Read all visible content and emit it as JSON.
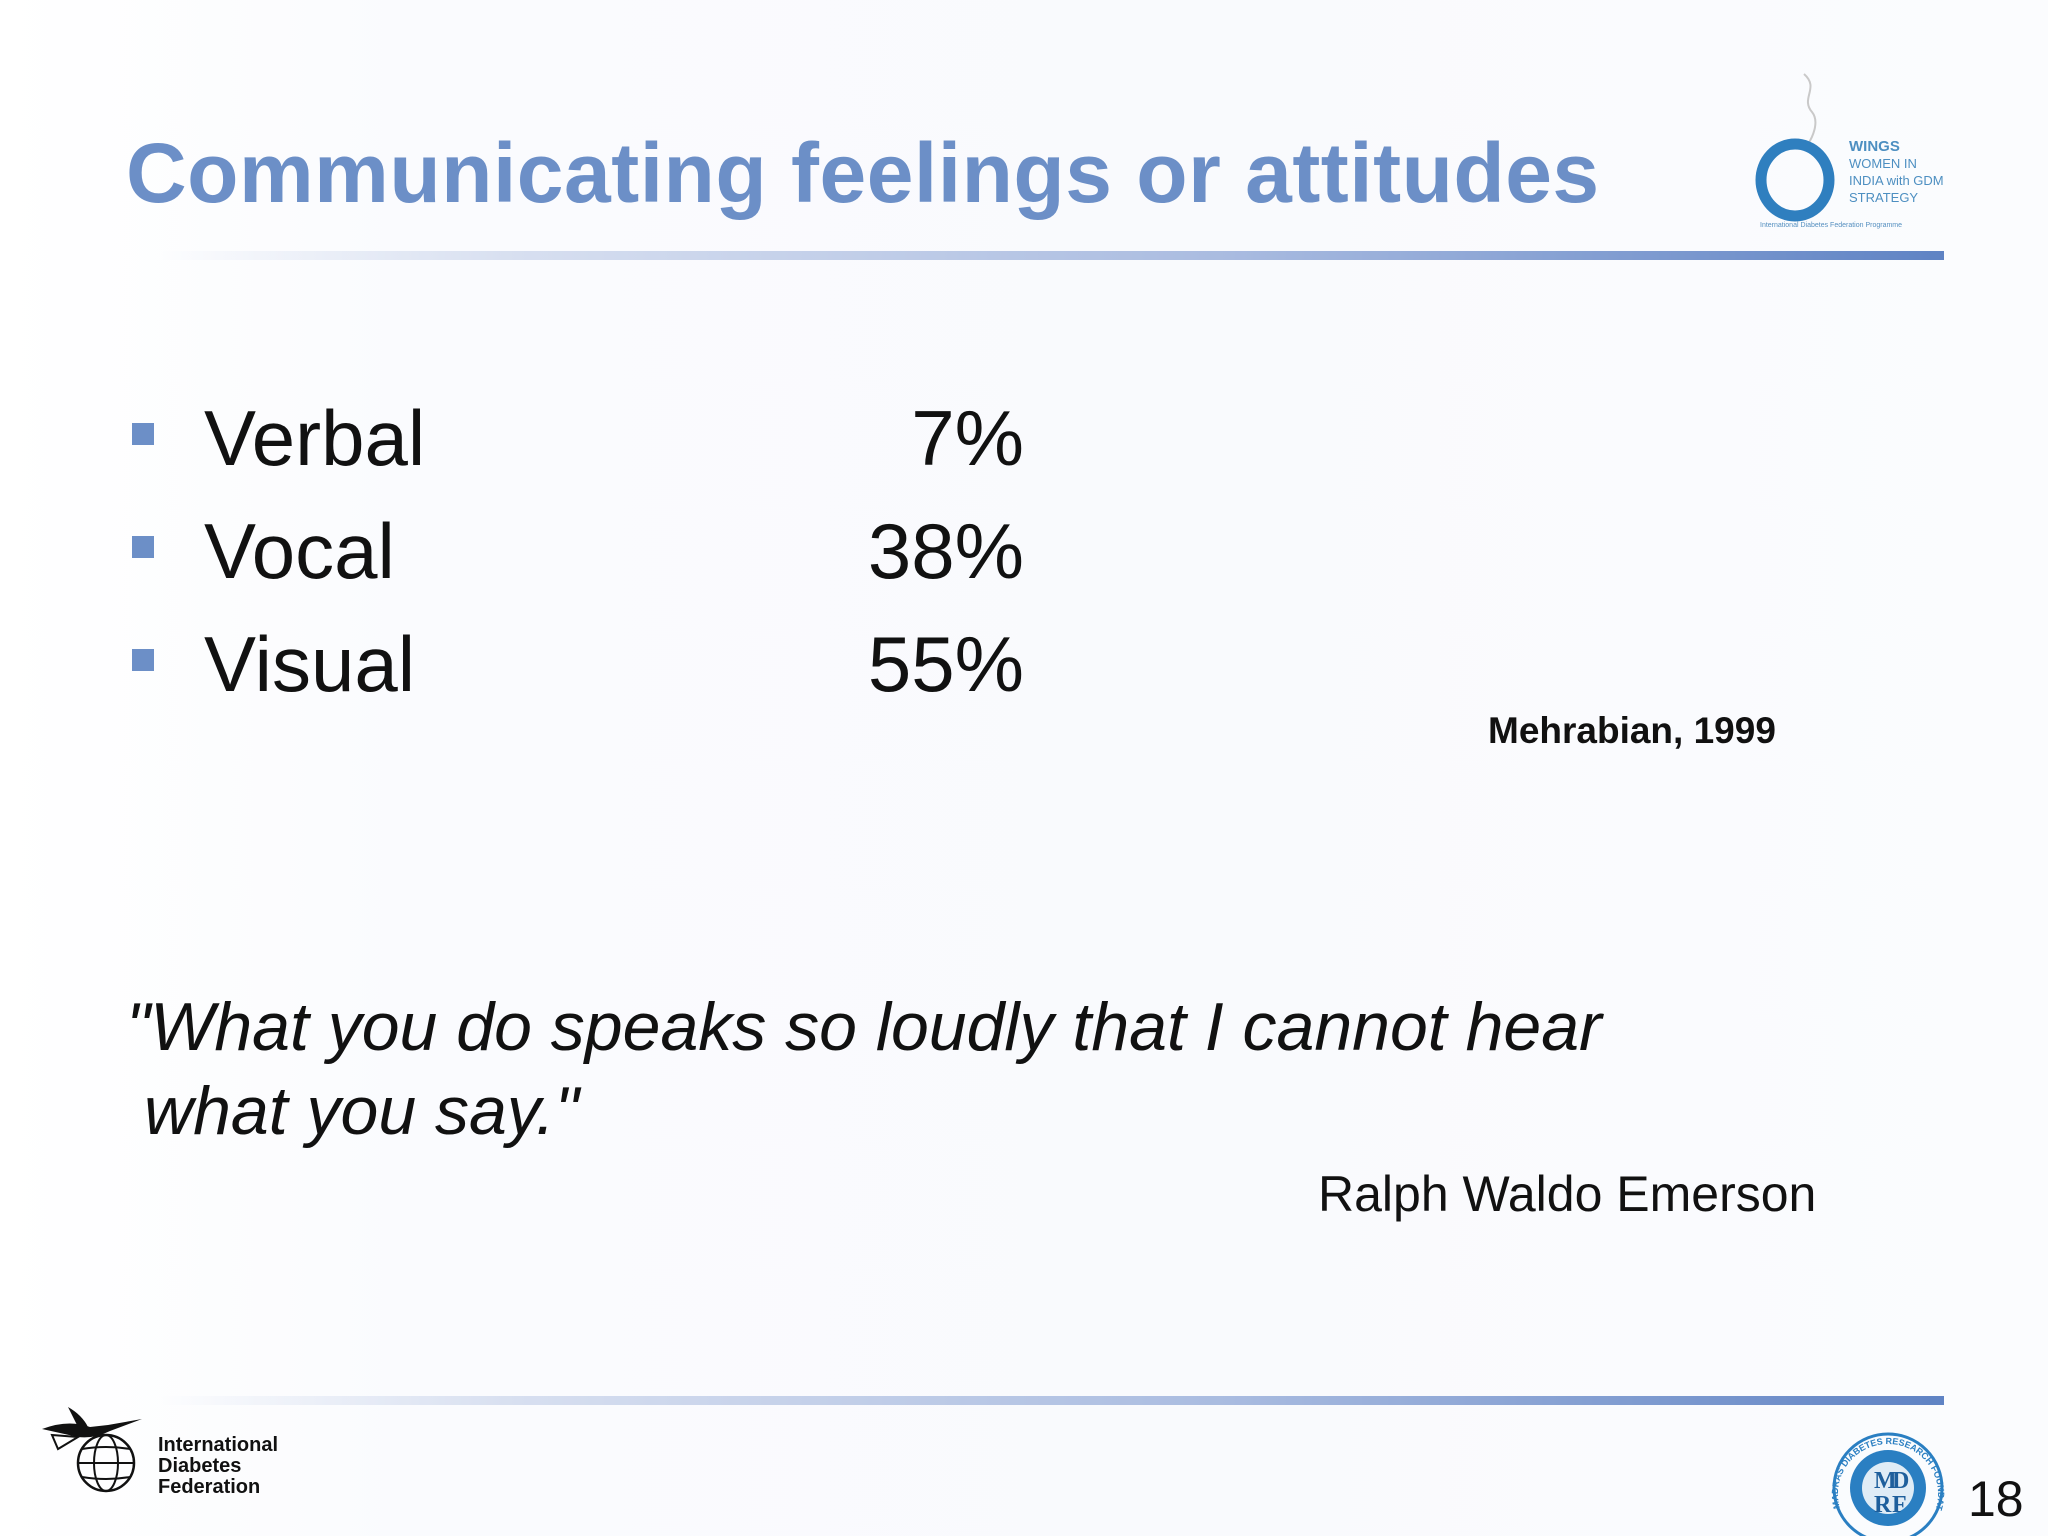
{
  "slide": {
    "title": "Communicating feelings or attitudes",
    "bullets": [
      {
        "label": "Verbal",
        "value": "7%"
      },
      {
        "label": "Vocal",
        "value": "38%"
      },
      {
        "label": "Visual",
        "value": "55%"
      }
    ],
    "citation": "Mehrabian, 1999",
    "quote_line1": "\"What you do speaks so loudly that I cannot hear",
    "quote_line2": "what you say.\"",
    "quote_author": "Ralph Waldo Emerson",
    "page_number": "18"
  },
  "logos": {
    "wings": {
      "lines": [
        "WINGS",
        "WOMEN IN",
        "INDIA with GDM",
        "STRATEGY"
      ],
      "subtitle": "International Diabetes Federation Programme"
    },
    "idf": {
      "lines": [
        "International",
        "Diabetes",
        "Federation"
      ]
    },
    "mdrf": {
      "ring_text": "MADRAS DIABETES RESEARCH FOUNDATION",
      "letters": [
        "M",
        "D",
        "R",
        "F"
      ]
    }
  },
  "colors": {
    "title": "#6c8fc7",
    "bullet": "#6c8fc7",
    "text": "#111111",
    "rule_end": "#5f83c4",
    "wings_blue": "#3a87c4",
    "mdrf_blue": "#2a7fc2"
  }
}
